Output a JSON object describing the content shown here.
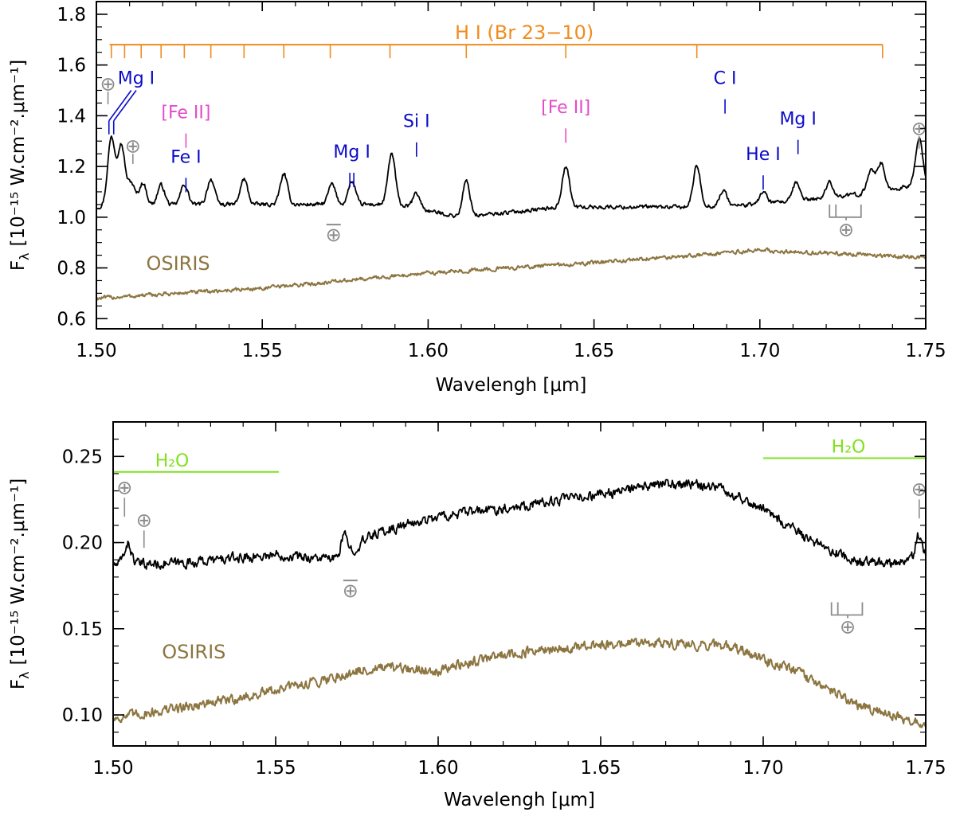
{
  "chart_data": [
    {
      "type": "line",
      "panel": "top",
      "xlabel": "Wavelengh [μm]",
      "ylabel_main": "F",
      "ylabel_sub": "λ",
      "ylabel_rest": "[10⁻¹⁵ W.cm⁻².μm⁻¹]",
      "xlim": [
        1.5,
        1.75
      ],
      "ylim": [
        0.56,
        1.85
      ],
      "xticks": [
        1.5,
        1.55,
        1.6,
        1.65,
        1.7,
        1.75
      ],
      "xtick_labels": [
        "1.50",
        "1.55",
        "1.60",
        "1.65",
        "1.70",
        "1.75"
      ],
      "yticks": [
        0.6,
        0.8,
        1.0,
        1.2,
        1.4,
        1.6,
        1.8
      ],
      "ytick_labels": [
        "0.6",
        "0.8",
        "1.0",
        "1.2",
        "1.4",
        "1.6",
        "1.8"
      ],
      "series": [
        {
          "name": "observed",
          "color": "#000000",
          "baseline": [
            [
              1.5,
              1.04
            ],
            [
              1.53,
              1.05
            ],
            [
              1.56,
              1.05
            ],
            [
              1.59,
              1.05
            ],
            [
              1.61,
              1.0
            ],
            [
              1.64,
              1.04
            ],
            [
              1.68,
              1.04
            ],
            [
              1.7,
              1.05
            ],
            [
              1.73,
              1.09
            ],
            [
              1.75,
              1.13
            ]
          ],
          "lines": [
            [
              1.5045,
              0.27
            ],
            [
              1.5075,
              0.24
            ],
            [
              1.5105,
              0.09
            ],
            [
              1.514,
              0.09
            ],
            [
              1.5195,
              0.08
            ],
            [
              1.5265,
              0.08
            ],
            [
              1.5345,
              0.1
            ],
            [
              1.5445,
              0.1
            ],
            [
              1.5565,
              0.12
            ],
            [
              1.571,
              0.08
            ],
            [
              1.577,
              0.09
            ],
            [
              1.589,
              0.2
            ],
            [
              1.5965,
              0.06
            ],
            [
              1.6115,
              0.14
            ],
            [
              1.6415,
              0.16
            ],
            [
              1.681,
              0.16
            ],
            [
              1.689,
              0.06
            ],
            [
              1.701,
              0.05
            ],
            [
              1.711,
              0.07
            ],
            [
              1.721,
              0.06
            ],
            [
              1.7335,
              0.09
            ],
            [
              1.7365,
              0.11
            ],
            [
              1.748,
              0.18
            ]
          ],
          "noise": 0.012
        },
        {
          "name": "OSIRIS",
          "label": "OSIRIS",
          "color": "#8c7540",
          "baseline": [
            [
              1.5,
              0.68
            ],
            [
              1.55,
              0.72
            ],
            [
              1.6,
              0.78
            ],
            [
              1.65,
              0.82
            ],
            [
              1.7,
              0.87
            ],
            [
              1.75,
              0.84
            ]
          ],
          "noise": 0.012
        }
      ],
      "hi_series": {
        "label": "H I (Br 23−10)",
        "color": "#f08c1e",
        "level": 1.68,
        "range": [
          1.504,
          1.737
        ],
        "ticks": [
          1.5045,
          1.5085,
          1.5135,
          1.5195,
          1.5265,
          1.5345,
          1.5445,
          1.5565,
          1.5705,
          1.5885,
          1.6115,
          1.6415,
          1.681,
          1.737
        ]
      },
      "annotations": [
        {
          "text": "Mg I",
          "color": "#0a0ac8",
          "x": 1.512,
          "y": 1.525,
          "tick_x": 1.5045,
          "tick_y": 1.38,
          "style": "double-diag"
        },
        {
          "text": "[Fe II]",
          "color": "#e64bc8",
          "x": 1.527,
          "y": 1.39,
          "tick_x": 1.527,
          "tick_y": 1.33
        },
        {
          "text": "Fe I",
          "color": "#0a0ac8",
          "x": 1.527,
          "y": 1.215,
          "tick_x": 1.527,
          "tick_y": 1.155
        },
        {
          "text": "Mg I",
          "color": "#0a0ac8",
          "x": 1.577,
          "y": 1.235,
          "tick_x": 1.577,
          "tick_y": 1.175,
          "style": "double"
        },
        {
          "text": "Si I",
          "color": "#0a0ac8",
          "x": 1.5965,
          "y": 1.355,
          "tick_x": 1.5965,
          "tick_y": 1.295
        },
        {
          "text": "[Fe II]",
          "color": "#e64bc8",
          "x": 1.6415,
          "y": 1.41,
          "tick_x": 1.6415,
          "tick_y": 1.35
        },
        {
          "text": "C I",
          "color": "#0a0ac8",
          "x": 1.6895,
          "y": 1.525,
          "tick_x": 1.6895,
          "tick_y": 1.465
        },
        {
          "text": "He I",
          "color": "#0a0ac8",
          "x": 1.701,
          "y": 1.225,
          "tick_x": 1.701,
          "tick_y": 1.165
        },
        {
          "text": "Mg I",
          "color": "#0a0ac8",
          "x": 1.7115,
          "y": 1.365,
          "tick_x": 1.7115,
          "tick_y": 1.305
        }
      ],
      "telluric": [
        {
          "symbol": "⊕",
          "x": 1.5035,
          "y": 1.525,
          "kind": "down",
          "tick_y": [
            1.495,
            1.445
          ]
        },
        {
          "symbol": "⊕",
          "x": 1.511,
          "y": 1.28,
          "kind": "down",
          "tick_y": [
            1.25,
            1.21
          ]
        },
        {
          "symbol": "⊕",
          "x": 1.5715,
          "y": 0.93,
          "kind": "bar-above"
        },
        {
          "symbol": "⊕",
          "x": 1.726,
          "y": 0.95,
          "kind": "bracket",
          "bracket": [
            1.721,
            1.7305
          ],
          "bracket_y": 1.0
        },
        {
          "symbol": "⊕",
          "x": 1.748,
          "y": 1.35,
          "kind": "down",
          "tick_y": [
            1.32,
            1.27
          ]
        }
      ]
    },
    {
      "type": "line",
      "panel": "bottom",
      "xlabel": "Wavelengh [μm]",
      "ylabel_main": "F",
      "ylabel_sub": "λ",
      "ylabel_rest": "[10⁻¹⁵ W.cm⁻².μm⁻¹]",
      "xlim": [
        1.5,
        1.75
      ],
      "ylim": [
        0.082,
        0.27
      ],
      "xticks": [
        1.5,
        1.55,
        1.6,
        1.65,
        1.7,
        1.75
      ],
      "xtick_labels": [
        "1.50",
        "1.55",
        "1.60",
        "1.65",
        "1.70",
        "1.75"
      ],
      "yticks": [
        0.1,
        0.15,
        0.2,
        0.25
      ],
      "ytick_labels": [
        "0.10",
        "0.15",
        "0.20",
        "0.25"
      ],
      "series": [
        {
          "name": "observed",
          "color": "#000000",
          "baseline": [
            [
              1.5,
              0.187
            ],
            [
              1.52,
              0.188
            ],
            [
              1.55,
              0.193
            ],
            [
              1.57,
              0.19
            ],
            [
              1.58,
              0.205
            ],
            [
              1.6,
              0.215
            ],
            [
              1.62,
              0.22
            ],
            [
              1.65,
              0.228
            ],
            [
              1.67,
              0.234
            ],
            [
              1.685,
              0.233
            ],
            [
              1.7,
              0.22
            ],
            [
              1.715,
              0.2
            ],
            [
              1.73,
              0.188
            ],
            [
              1.75,
              0.19
            ]
          ],
          "lines": [
            [
              1.5045,
              0.012
            ],
            [
              1.571,
              0.012
            ],
            [
              1.748,
              0.015
            ]
          ],
          "noise": 0.0045
        },
        {
          "name": "OSIRIS",
          "label": "OSIRIS",
          "color": "#8c7540",
          "baseline": [
            [
              1.5,
              0.098
            ],
            [
              1.54,
              0.11
            ],
            [
              1.58,
              0.127
            ],
            [
              1.6,
              0.126
            ],
            [
              1.62,
              0.135
            ],
            [
              1.66,
              0.142
            ],
            [
              1.69,
              0.14
            ],
            [
              1.71,
              0.125
            ],
            [
              1.73,
              0.105
            ],
            [
              1.75,
              0.095
            ]
          ],
          "noise": 0.0045
        }
      ],
      "h2o_bands": [
        {
          "label": "H₂O",
          "color": "#7fe21e",
          "range": [
            1.5,
            1.551
          ],
          "level": 0.241
        },
        {
          "label": "H₂O",
          "color": "#7fe21e",
          "range": [
            1.7,
            1.75
          ],
          "level": 0.249
        }
      ],
      "telluric": [
        {
          "symbol": "⊕",
          "x": 1.5035,
          "y": 0.232,
          "kind": "down",
          "tick_y": [
            0.226,
            0.215
          ]
        },
        {
          "symbol": "⊕",
          "x": 1.5095,
          "y": 0.213,
          "kind": "down",
          "tick_y": [
            0.207,
            0.197
          ]
        },
        {
          "symbol": "⊕",
          "x": 1.573,
          "y": 0.172,
          "kind": "bar-above"
        },
        {
          "symbol": "⊕",
          "x": 1.726,
          "y": 0.151,
          "kind": "bracket",
          "bracket": [
            1.721,
            1.7305
          ],
          "bracket_y": 0.158
        },
        {
          "symbol": "⊕",
          "x": 1.748,
          "y": 0.231,
          "kind": "down",
          "tick_y": [
            0.225,
            0.214
          ]
        }
      ],
      "osiris_label_pos": [
        1.515,
        0.137
      ]
    }
  ],
  "colors": {
    "observed": "#000000",
    "osiris": "#8c7540",
    "hi": "#f08c1e",
    "blue": "#0a0ac8",
    "magenta": "#e64bc8",
    "green": "#7fe21e",
    "telluric": "#8c8c8c"
  }
}
